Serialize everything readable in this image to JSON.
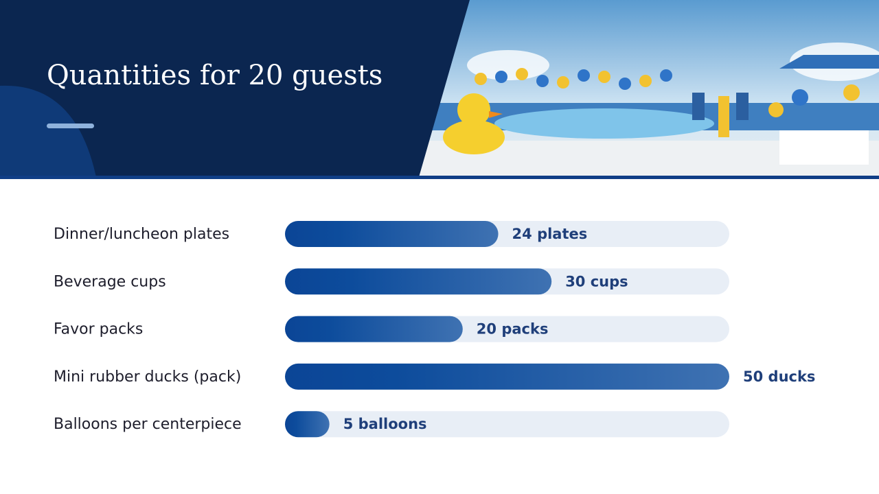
{
  "chart_data": {
    "type": "hbar",
    "title": "Quantities for 20 guests",
    "categories": [
      "Dinner/luncheon plates",
      "Beverage cups",
      "Favor packs",
      "Mini rubber ducks (pack)",
      "Balloons per centerpiece"
    ],
    "values": [
      24,
      30,
      20,
      50,
      5
    ],
    "value_labels": [
      "24 plates",
      "30 cups",
      "20 packs",
      "50 ducks",
      "5 balloons"
    ],
    "xlim": [
      0,
      50
    ],
    "color": "#0d4a9a"
  }
}
